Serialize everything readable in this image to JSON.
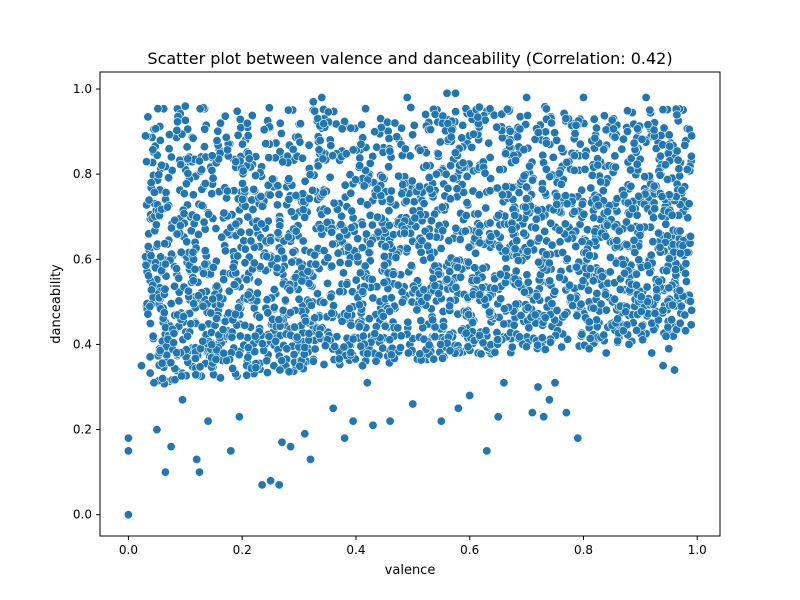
{
  "chart_data": {
    "type": "scatter",
    "title": "Scatter plot between valence and danceability (Correlation: 0.42)",
    "xlabel": "valence",
    "ylabel": "danceability",
    "xlim": [
      -0.05,
      1.04
    ],
    "ylim": [
      -0.05,
      1.04
    ],
    "xticks": [
      0.0,
      0.2,
      0.4,
      0.6,
      0.8,
      1.0
    ],
    "xtick_labels": [
      "0.0",
      "0.2",
      "0.4",
      "0.6",
      "0.8",
      "1.0"
    ],
    "yticks": [
      0.0,
      0.2,
      0.4,
      0.6,
      0.8,
      1.0
    ],
    "ytick_labels": [
      "0.0",
      "0.2",
      "0.4",
      "0.6",
      "0.8",
      "1.0"
    ],
    "grid": false,
    "marker_color": "#1f77b4",
    "marker_edge_color": "#ffffff",
    "points": [
      [
        0.0,
        0.0
      ],
      [
        0.0,
        0.15
      ],
      [
        0.0,
        0.18
      ],
      [
        0.023,
        0.35
      ],
      [
        0.03,
        0.89
      ],
      [
        0.035,
        0.63
      ],
      [
        0.04,
        0.78
      ],
      [
        0.045,
        0.31
      ],
      [
        0.05,
        0.2
      ],
      [
        0.06,
        0.32
      ],
      [
        0.065,
        0.1
      ],
      [
        0.075,
        0.16
      ],
      [
        0.095,
        0.27
      ],
      [
        0.1,
        0.96
      ],
      [
        0.12,
        0.13
      ],
      [
        0.125,
        0.1
      ],
      [
        0.14,
        0.22
      ],
      [
        0.18,
        0.15
      ],
      [
        0.195,
        0.23
      ],
      [
        0.21,
        0.37
      ],
      [
        0.235,
        0.07
      ],
      [
        0.25,
        0.08
      ],
      [
        0.265,
        0.07
      ],
      [
        0.27,
        0.17
      ],
      [
        0.285,
        0.16
      ],
      [
        0.31,
        0.19
      ],
      [
        0.32,
        0.13
      ],
      [
        0.325,
        0.97
      ],
      [
        0.34,
        0.98
      ],
      [
        0.36,
        0.25
      ],
      [
        0.38,
        0.18
      ],
      [
        0.395,
        0.22
      ],
      [
        0.42,
        0.31
      ],
      [
        0.43,
        0.21
      ],
      [
        0.46,
        0.22
      ],
      [
        0.49,
        0.98
      ],
      [
        0.5,
        0.26
      ],
      [
        0.55,
        0.22
      ],
      [
        0.56,
        0.99
      ],
      [
        0.575,
        0.99
      ],
      [
        0.58,
        0.25
      ],
      [
        0.6,
        0.28
      ],
      [
        0.63,
        0.15
      ],
      [
        0.65,
        0.23
      ],
      [
        0.66,
        0.31
      ],
      [
        0.7,
        0.98
      ],
      [
        0.71,
        0.24
      ],
      [
        0.72,
        0.3
      ],
      [
        0.73,
        0.23
      ],
      [
        0.74,
        0.27
      ],
      [
        0.75,
        0.31
      ],
      [
        0.77,
        0.24
      ],
      [
        0.79,
        0.18
      ],
      [
        0.8,
        0.98
      ],
      [
        0.81,
        0.39
      ],
      [
        0.84,
        0.38
      ],
      [
        0.86,
        0.46
      ],
      [
        0.88,
        0.4
      ],
      [
        0.91,
        0.98
      ],
      [
        0.92,
        0.38
      ],
      [
        0.94,
        0.35
      ],
      [
        0.95,
        0.39
      ],
      [
        0.96,
        0.34
      ],
      [
        0.97,
        0.45
      ],
      [
        0.98,
        0.59
      ],
      [
        0.99,
        0.48
      ],
      [
        0.99,
        0.89
      ]
    ],
    "dense_region_bounds": {
      "x": [
        0.03,
        0.99
      ],
      "y_low_at_x0": 0.3,
      "y_low_at_x1": 0.42,
      "y_high": 0.96
    }
  }
}
